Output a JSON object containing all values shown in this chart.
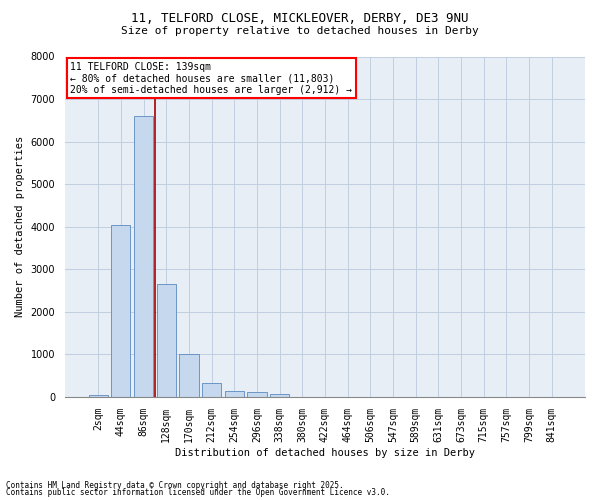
{
  "title_line1": "11, TELFORD CLOSE, MICKLEOVER, DERBY, DE3 9NU",
  "title_line2": "Size of property relative to detached houses in Derby",
  "xlabel": "Distribution of detached houses by size in Derby",
  "ylabel": "Number of detached properties",
  "categories": [
    "2sqm",
    "44sqm",
    "86sqm",
    "128sqm",
    "170sqm",
    "212sqm",
    "254sqm",
    "296sqm",
    "338sqm",
    "380sqm",
    "422sqm",
    "464sqm",
    "506sqm",
    "547sqm",
    "589sqm",
    "631sqm",
    "673sqm",
    "715sqm",
    "757sqm",
    "799sqm",
    "841sqm"
  ],
  "values": [
    50,
    4050,
    6600,
    2650,
    1000,
    330,
    140,
    110,
    60,
    0,
    0,
    0,
    0,
    0,
    0,
    0,
    0,
    0,
    0,
    0,
    0
  ],
  "bar_color": "#c5d8ee",
  "bar_edge_color": "#5a8abf",
  "vline_position": 2.5,
  "vline_color": "#aa0000",
  "annotation_title": "11 TELFORD CLOSE: 139sqm",
  "annotation_line2": "← 80% of detached houses are smaller (11,803)",
  "annotation_line3": "20% of semi-detached houses are larger (2,912) →",
  "ylim": [
    0,
    8000
  ],
  "yticks": [
    0,
    1000,
    2000,
    3000,
    4000,
    5000,
    6000,
    7000,
    8000
  ],
  "footnote_line1": "Contains HM Land Registry data © Crown copyright and database right 2025.",
  "footnote_line2": "Contains public sector information licensed under the Open Government Licence v3.0.",
  "fig_bg_color": "#ffffff",
  "plot_bg_color": "#e8eef6",
  "grid_color": "#c0cfe0",
  "title_fontsize": 9,
  "subtitle_fontsize": 8,
  "axis_label_fontsize": 7.5,
  "tick_fontsize": 7,
  "annot_fontsize": 7,
  "footnote_fontsize": 5.5
}
